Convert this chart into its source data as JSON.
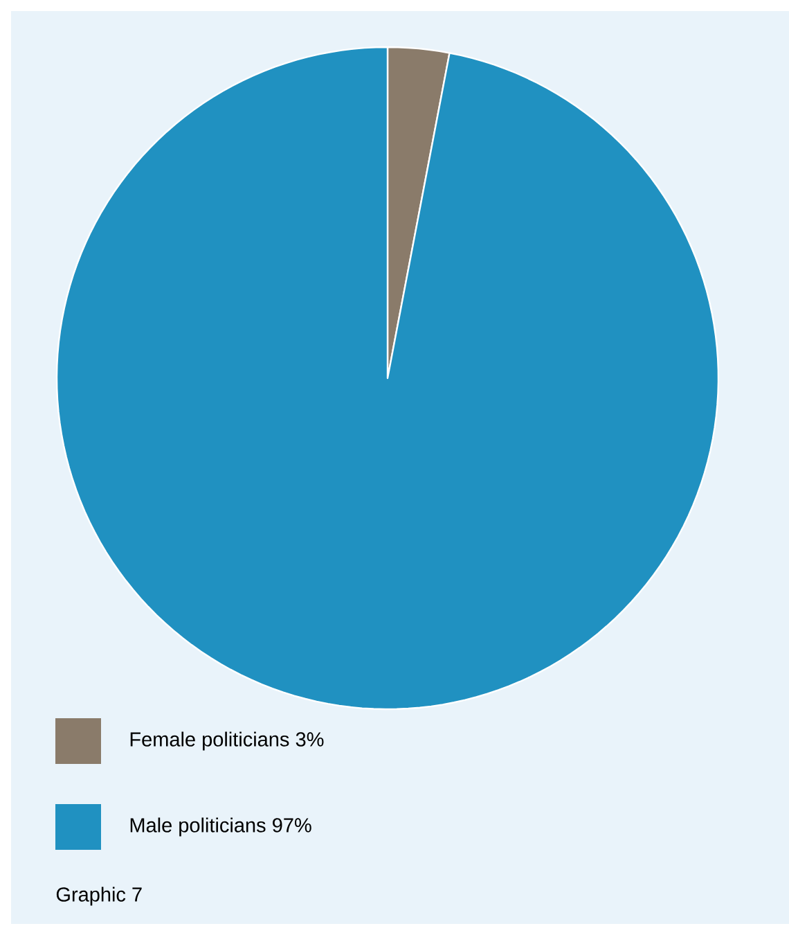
{
  "chart_data": {
    "type": "pie",
    "categories": [
      "Female politicians",
      "Male politicians"
    ],
    "values": [
      3,
      97
    ],
    "colors": [
      "#8a7b6a",
      "#2091c1"
    ],
    "value_labels": [
      "3%",
      "97%"
    ],
    "legend": "bottom",
    "annotations": [
      "Graphic 7"
    ]
  }
}
